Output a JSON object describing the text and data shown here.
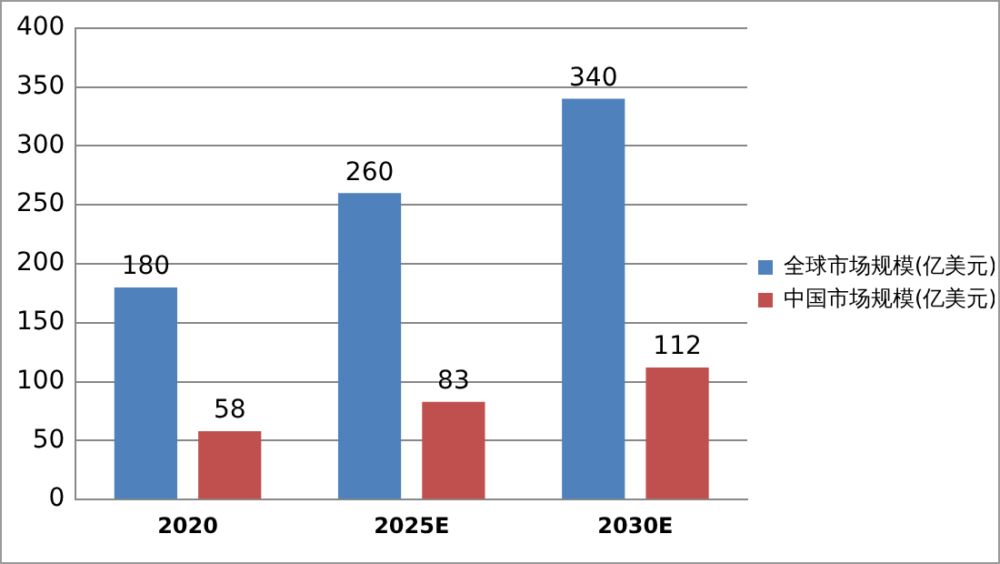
{
  "chart_data": {
    "type": "bar",
    "categories": [
      "2020",
      "2025E",
      "2030E"
    ],
    "series": [
      {
        "name": "全球市场规模(亿美元)",
        "color": "#4f81bd",
        "values": [
          180,
          260,
          340
        ]
      },
      {
        "name": "中国市场规模(亿美元)",
        "color": "#c0504d",
        "values": [
          58,
          83,
          112
        ]
      }
    ],
    "ylim": [
      0,
      400
    ],
    "yticks": [
      0,
      50,
      100,
      150,
      200,
      250,
      300,
      350,
      400
    ],
    "grid": "y",
    "legend": "right",
    "data_labels": true
  }
}
